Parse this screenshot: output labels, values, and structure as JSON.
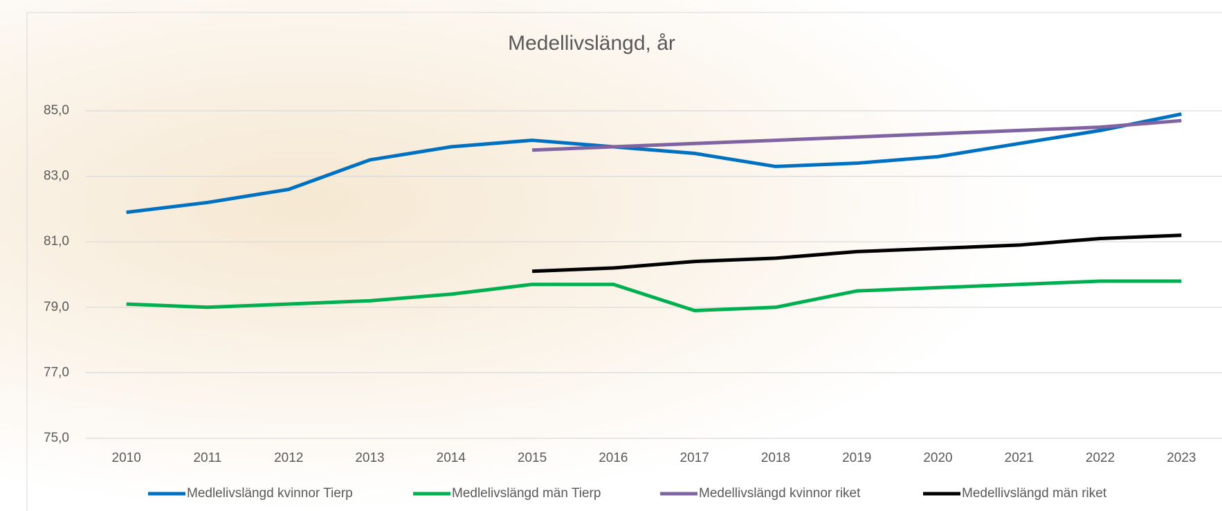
{
  "chart_data": {
    "type": "line",
    "title": "Medellivslängd, år",
    "categories": [
      "2010",
      "2011",
      "2012",
      "2013",
      "2014",
      "2015",
      "2016",
      "2017",
      "2018",
      "2019",
      "2020",
      "2021",
      "2022",
      "2023"
    ],
    "series": [
      {
        "name": "Medlelivslängd kvinnor Tierp",
        "color": "#0070c0",
        "values": [
          81.9,
          82.2,
          82.6,
          83.5,
          83.9,
          84.1,
          83.9,
          83.7,
          83.3,
          83.4,
          83.6,
          84.0,
          84.4,
          84.9
        ]
      },
      {
        "name": "Medlelivslängd män Tierp",
        "color": "#00b050",
        "values": [
          79.1,
          79.0,
          79.1,
          79.2,
          79.4,
          79.7,
          79.7,
          78.9,
          79.0,
          79.5,
          79.6,
          79.7,
          79.8,
          79.8
        ]
      },
      {
        "name": "Medellivslängd kvinnor riket",
        "color": "#8064a2",
        "values": [
          null,
          null,
          null,
          null,
          null,
          83.8,
          83.9,
          84.0,
          84.1,
          84.2,
          84.3,
          84.4,
          84.5,
          84.7
        ]
      },
      {
        "name": "Medellivslängd män riket",
        "color": "#000000",
        "values": [
          null,
          null,
          null,
          null,
          null,
          80.1,
          80.2,
          80.4,
          80.5,
          80.7,
          80.8,
          80.9,
          81.1,
          81.2
        ]
      }
    ],
    "ylim": [
      75,
      85
    ],
    "yticks": [
      {
        "value": 75,
        "label": "75,0"
      },
      {
        "value": 77,
        "label": "77,0"
      },
      {
        "value": 79,
        "label": "79,0"
      },
      {
        "value": 81,
        "label": "81,0"
      },
      {
        "value": 83,
        "label": "83,0"
      },
      {
        "value": 85,
        "label": "85,0"
      }
    ],
    "grid": true,
    "legend": "bottom"
  }
}
